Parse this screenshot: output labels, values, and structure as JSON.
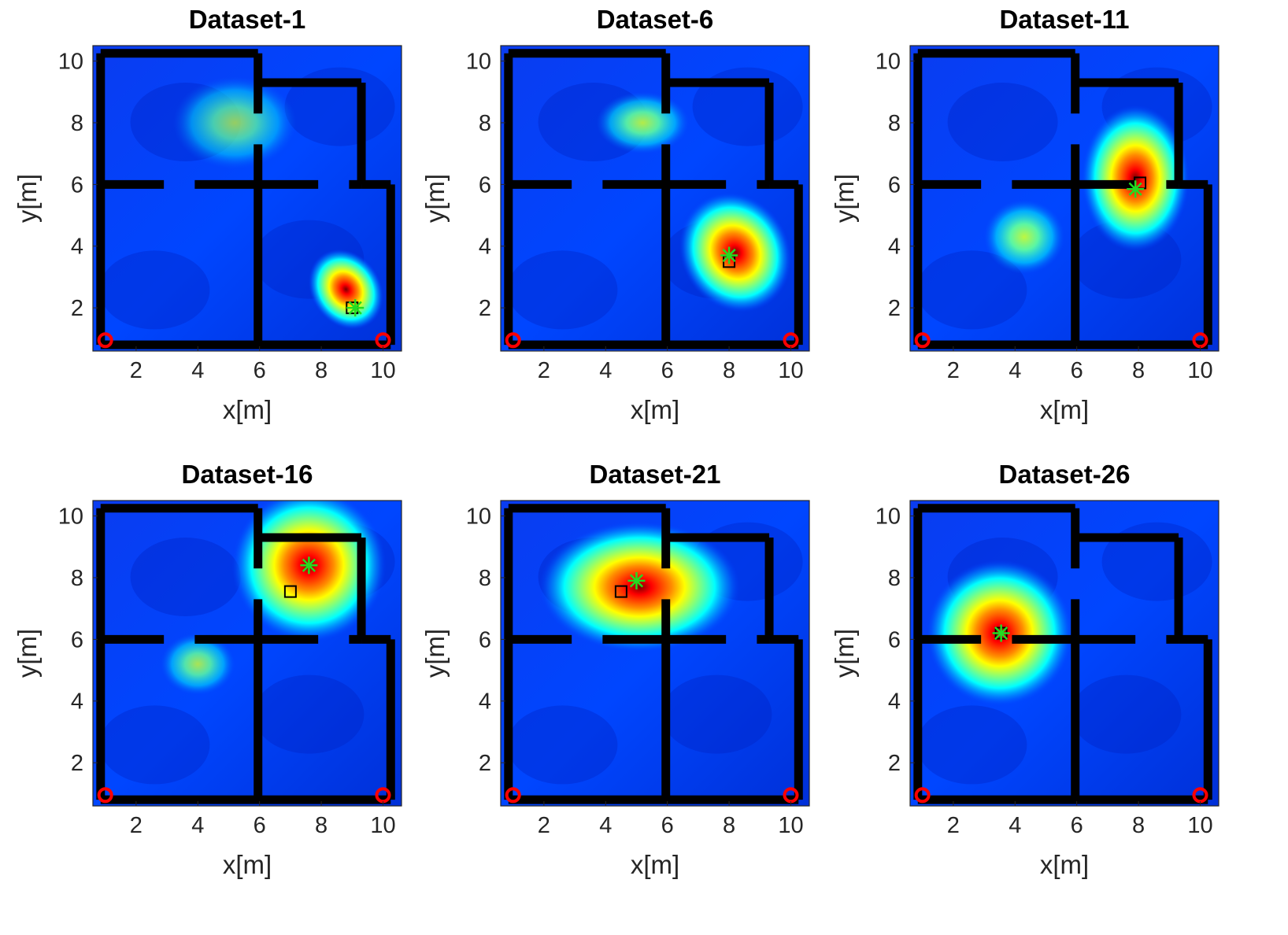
{
  "figure": {
    "colormap": "jet",
    "wall_color": "#000000",
    "receiver_color": "#ff0000",
    "estimate_color": "#22dd22",
    "truth_color": "#000000"
  },
  "floor_plan": {
    "walls": [
      [
        [
          0.85,
          10.25
        ],
        [
          5.95,
          10.25
        ]
      ],
      [
        [
          0.85,
          10.25
        ],
        [
          0.85,
          0.8
        ]
      ],
      [
        [
          0.85,
          0.8
        ],
        [
          10.25,
          0.8
        ]
      ],
      [
        [
          10.25,
          0.8
        ],
        [
          10.25,
          6.0
        ]
      ],
      [
        [
          5.95,
          10.25
        ],
        [
          5.95,
          8.3
        ]
      ],
      [
        [
          5.95,
          7.3
        ],
        [
          5.95,
          0.8
        ]
      ],
      [
        [
          5.95,
          9.3
        ],
        [
          9.3,
          9.3
        ]
      ],
      [
        [
          9.3,
          9.3
        ],
        [
          9.3,
          6.0
        ]
      ],
      [
        [
          9.3,
          6.0
        ],
        [
          10.25,
          6.0
        ]
      ],
      [
        [
          0.85,
          6.0
        ],
        [
          2.9,
          6.0
        ]
      ],
      [
        [
          3.9,
          6.0
        ],
        [
          7.9,
          6.0
        ]
      ],
      [
        [
          8.9,
          6.0
        ],
        [
          9.3,
          6.0
        ]
      ]
    ],
    "receivers": [
      [
        1.0,
        0.95
      ],
      [
        10.0,
        0.95
      ]
    ]
  },
  "chart_data": [
    {
      "type": "heatmap",
      "title": "Dataset-1",
      "xlabel": "x[m]",
      "ylabel": "y[m]",
      "xlim": [
        0.6,
        10.6
      ],
      "ylim": [
        0.6,
        10.5
      ],
      "xticks": [
        "2",
        "4",
        "6",
        "8",
        "10"
      ],
      "yticks": [
        "2",
        "4",
        "6",
        "8",
        "10"
      ],
      "hotspot": {
        "x": 8.8,
        "y": 2.6,
        "sx": 0.9,
        "sy": 1.1,
        "orient": -35
      },
      "secondary": [
        {
          "x": 5.2,
          "y": 8.0,
          "sx": 2.0,
          "sy": 1.5,
          "intensity": 0.45
        }
      ],
      "estimate": [
        9.1,
        2.0
      ],
      "truth": [
        9.0,
        2.0
      ]
    },
    {
      "type": "heatmap",
      "title": "Dataset-6",
      "xlabel": "x[m]",
      "ylabel": "y[m]",
      "xlim": [
        0.6,
        10.6
      ],
      "ylim": [
        0.6,
        10.5
      ],
      "xticks": [
        "2",
        "4",
        "6",
        "8",
        "10"
      ],
      "yticks": [
        "2",
        "4",
        "6",
        "8",
        "10"
      ],
      "hotspot": {
        "x": 8.2,
        "y": 3.8,
        "sx": 1.4,
        "sy": 1.6,
        "orient": -30
      },
      "secondary": [
        {
          "x": 5.2,
          "y": 8.0,
          "sx": 1.5,
          "sy": 1.0,
          "intensity": 0.6
        }
      ],
      "estimate": [
        8.0,
        3.7
      ],
      "truth": [
        8.0,
        3.5
      ]
    },
    {
      "type": "heatmap",
      "title": "Dataset-11",
      "xlabel": "x[m]",
      "ylabel": "y[m]",
      "xlim": [
        0.6,
        10.6
      ],
      "ylim": [
        0.6,
        10.5
      ],
      "xticks": [
        "2",
        "4",
        "6",
        "8",
        "10"
      ],
      "yticks": [
        "2",
        "4",
        "6",
        "8",
        "10"
      ],
      "hotspot": {
        "x": 7.9,
        "y": 6.2,
        "sx": 1.4,
        "sy": 1.9,
        "orient": 0
      },
      "secondary": [
        {
          "x": 4.3,
          "y": 4.3,
          "sx": 1.3,
          "sy": 1.2,
          "intensity": 0.65
        }
      ],
      "estimate": [
        7.9,
        5.85
      ],
      "truth": [
        8.05,
        6.05
      ]
    },
    {
      "type": "heatmap",
      "title": "Dataset-16",
      "xlabel": "x[m]",
      "ylabel": "y[m]",
      "xlim": [
        0.6,
        10.6
      ],
      "ylim": [
        0.6,
        10.5
      ],
      "xticks": [
        "2",
        "4",
        "6",
        "8",
        "10"
      ],
      "yticks": [
        "2",
        "4",
        "6",
        "8",
        "10"
      ],
      "hotspot": {
        "x": 7.6,
        "y": 8.4,
        "sx": 2.0,
        "sy": 2.0,
        "orient": 0
      },
      "secondary": [
        {
          "x": 4.0,
          "y": 5.2,
          "sx": 1.2,
          "sy": 1.0,
          "intensity": 0.55
        }
      ],
      "estimate": [
        7.6,
        8.4
      ],
      "truth": [
        7.0,
        7.55
      ]
    },
    {
      "type": "heatmap",
      "title": "Dataset-21",
      "xlabel": "x[m]",
      "ylabel": "y[m]",
      "xlim": [
        0.6,
        10.6
      ],
      "ylim": [
        0.6,
        10.5
      ],
      "xticks": [
        "2",
        "4",
        "6",
        "8",
        "10"
      ],
      "yticks": [
        "2",
        "4",
        "6",
        "8",
        "10"
      ],
      "hotspot": {
        "x": 5.1,
        "y": 7.7,
        "sx": 2.6,
        "sy": 1.7,
        "orient": 0
      },
      "secondary": [],
      "estimate": [
        5.0,
        7.9
      ],
      "truth": [
        4.5,
        7.55
      ]
    },
    {
      "type": "heatmap",
      "title": "Dataset-26",
      "xlabel": "x[m]",
      "ylabel": "y[m]",
      "xlim": [
        0.6,
        10.6
      ],
      "ylim": [
        0.6,
        10.5
      ],
      "xticks": [
        "2",
        "4",
        "6",
        "8",
        "10"
      ],
      "yticks": [
        "2",
        "4",
        "6",
        "8",
        "10"
      ],
      "hotspot": {
        "x": 3.5,
        "y": 6.2,
        "sx": 1.9,
        "sy": 1.9,
        "orient": 0
      },
      "secondary": [],
      "estimate": [
        3.55,
        6.2
      ],
      "truth": [
        3.55,
        6.2
      ]
    }
  ]
}
